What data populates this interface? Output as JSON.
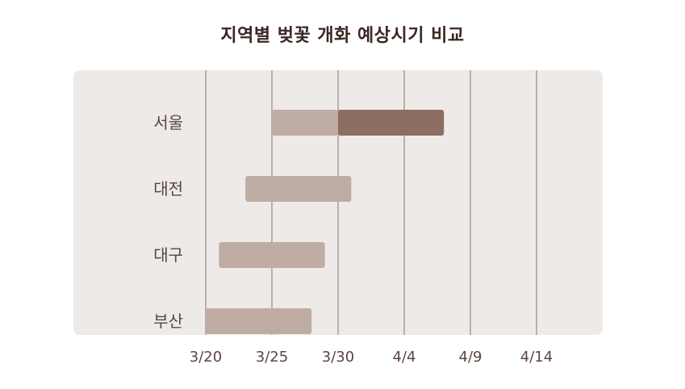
{
  "title": "지역별 벚꽃 개화 예상시기 비교",
  "colors": {
    "background": "#eeeae8",
    "grid": "#a89490",
    "bar": "#bfaca5",
    "highlight": "#8d6e63",
    "title": "#3a2622",
    "text": "#5a4642"
  },
  "chart_data": {
    "type": "bar",
    "orientation": "horizontal-range",
    "title": "지역별 벚꽃 개화 예상시기 비교",
    "x_ticks": [
      "3/20",
      "3/25",
      "3/30",
      "4/4",
      "4/9",
      "4/14"
    ],
    "xlim": [
      "3/20",
      "4/19"
    ],
    "grid": true,
    "categories": [
      "서울",
      "대전",
      "대구",
      "부산"
    ],
    "ranges": [
      {
        "label": "서울",
        "start": "3/25",
        "end": "3/30",
        "highlight_start": "3/30",
        "highlight_end": "4/7"
      },
      {
        "label": "대전",
        "start": "3/23",
        "end": "3/31"
      },
      {
        "label": "대구",
        "start": "3/21",
        "end": "3/29"
      },
      {
        "label": "부산",
        "start": "3/20",
        "end": "3/28"
      }
    ]
  }
}
